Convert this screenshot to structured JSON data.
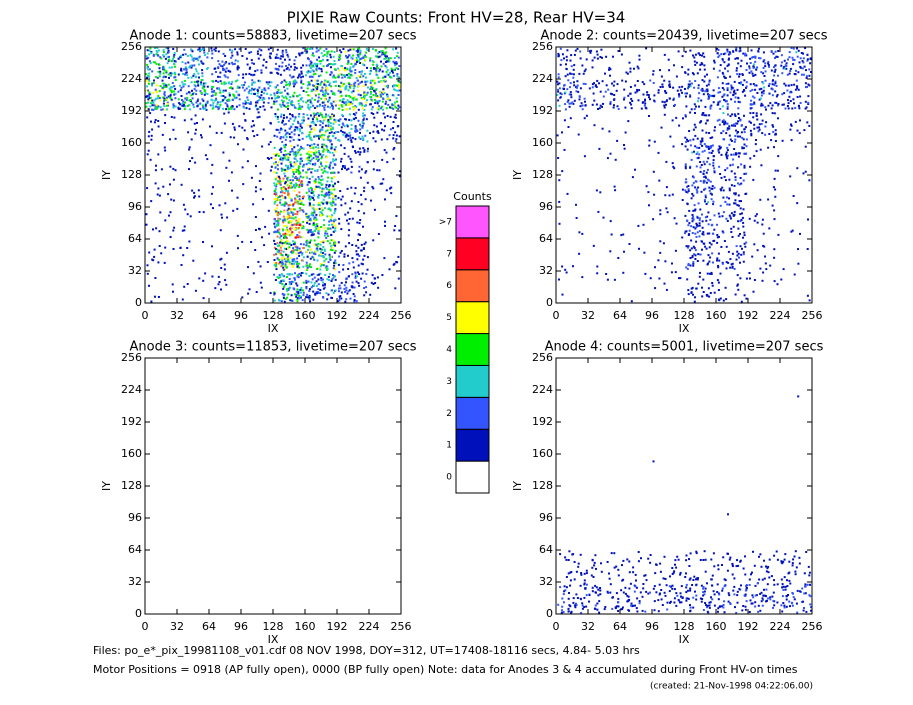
{
  "title": "PIXIE Raw Counts:  Front HV=28, Rear HV=34",
  "chart_data": [
    {
      "type": "heatmap",
      "title": "Anode 1: counts=58883, livetime=207 secs",
      "xlabel": "IX",
      "ylabel": "IY",
      "xlim": [
        0,
        256
      ],
      "ylim": [
        0,
        256
      ],
      "xticks": [
        0,
        32,
        64,
        96,
        128,
        160,
        192,
        224,
        256
      ],
      "yticks": [
        0,
        32,
        64,
        96,
        128,
        160,
        192,
        224,
        256
      ],
      "grid": [
        [
          2.5,
          2,
          1.5,
          1,
          1.5,
          2.5,
          3,
          2.5
        ],
        [
          3,
          2.5,
          2.5,
          2,
          2.5,
          3,
          3,
          3
        ],
        [
          0.5,
          0.3,
          0.3,
          0.5,
          2,
          3,
          2,
          1
        ],
        [
          0.3,
          0.2,
          0.2,
          0.3,
          3,
          3,
          1,
          0.3
        ],
        [
          0.3,
          0.2,
          0.2,
          0.2,
          4,
          3,
          0.5,
          0.3
        ],
        [
          0.3,
          0.2,
          0.2,
          0.2,
          4,
          3,
          0.5,
          0.2
        ],
        [
          0.3,
          0.2,
          0.2,
          0.2,
          3.5,
          3,
          1,
          0.2
        ],
        [
          0.2,
          0.2,
          0.2,
          0.2,
          2.5,
          2,
          1.5,
          0.3
        ]
      ]
    },
    {
      "type": "heatmap",
      "title": "Anode 2: counts=20439, livetime=207 secs",
      "xlabel": "IX",
      "ylabel": "IY",
      "xlim": [
        0,
        256
      ],
      "ylim": [
        0,
        256
      ],
      "xticks": [
        0,
        32,
        64,
        96,
        128,
        160,
        192,
        224,
        256
      ],
      "yticks": [
        0,
        32,
        64,
        96,
        128,
        160,
        192,
        224,
        256
      ],
      "grid": [
        [
          1,
          0.5,
          0.3,
          0.3,
          0.8,
          1.5,
          1.5,
          1.5
        ],
        [
          1.5,
          1,
          1,
          1,
          1.5,
          1.5,
          1.5,
          1.2
        ],
        [
          0.2,
          0.1,
          0.1,
          0.2,
          1,
          1.5,
          1,
          0.3
        ],
        [
          0.1,
          0.1,
          0.1,
          0.2,
          1.5,
          1.2,
          0.3,
          0.1
        ],
        [
          0.1,
          0.1,
          0.1,
          0.2,
          1.5,
          1,
          0.2,
          0.1
        ],
        [
          0.1,
          0.1,
          0.1,
          0.2,
          1.5,
          1,
          0.3,
          0.1
        ],
        [
          0.1,
          0.1,
          0.1,
          0.2,
          1.2,
          1,
          0.3,
          0.1
        ],
        [
          0.1,
          0.1,
          0.1,
          0.2,
          0.8,
          0.5,
          0.2,
          0.1
        ]
      ]
    },
    {
      "type": "heatmap",
      "title": "Anode 3: counts=11853, livetime=207 secs",
      "xlabel": "IX",
      "ylabel": "IY",
      "xlim": [
        0,
        256
      ],
      "ylim": [
        0,
        256
      ],
      "xticks": [
        0,
        32,
        64,
        96,
        128,
        160,
        192,
        224,
        256
      ],
      "yticks": [
        0,
        32,
        64,
        96,
        128,
        160,
        192,
        224,
        256
      ],
      "grid": [
        [
          0,
          0,
          0,
          0,
          0,
          0,
          0,
          0
        ],
        [
          0,
          0,
          0,
          0,
          0,
          0,
          0,
          0
        ],
        [
          0,
          0,
          0,
          0,
          0,
          0,
          0,
          0
        ],
        [
          0,
          0,
          0,
          0,
          0,
          0,
          0,
          0
        ],
        [
          0,
          0,
          0,
          0,
          0,
          0,
          0,
          0
        ],
        [
          0,
          0,
          0,
          0,
          0,
          0,
          0,
          0
        ],
        [
          0,
          0,
          0,
          0,
          0,
          0,
          0,
          0
        ],
        [
          0,
          0,
          0,
          0,
          0,
          0,
          0,
          0
        ]
      ]
    },
    {
      "type": "heatmap",
      "title": "Anode 4: counts=5001, livetime=207 secs",
      "xlabel": "IX",
      "ylabel": "IY",
      "xlim": [
        0,
        256
      ],
      "ylim": [
        0,
        256
      ],
      "xticks": [
        0,
        32,
        64,
        96,
        128,
        160,
        192,
        224,
        256
      ],
      "yticks": [
        0,
        32,
        64,
        96,
        128,
        160,
        192,
        224,
        256
      ],
      "grid": [
        [
          0,
          0,
          0,
          0,
          0,
          0,
          0,
          0
        ],
        [
          0,
          0,
          0,
          0,
          0,
          0,
          0,
          0.02
        ],
        [
          0,
          0,
          0,
          0,
          0,
          0,
          0,
          0
        ],
        [
          0,
          0,
          0,
          0.02,
          0,
          0,
          0,
          0
        ],
        [
          0,
          0,
          0,
          0,
          0,
          0.02,
          0,
          0
        ],
        [
          0,
          0,
          0,
          0,
          0,
          0,
          0,
          0
        ],
        [
          0.6,
          0.5,
          0.5,
          0.5,
          0.7,
          0.6,
          0.6,
          0.7
        ],
        [
          1.2,
          1,
          1,
          1,
          1.3,
          1.2,
          1.1,
          1.3
        ]
      ]
    }
  ],
  "colorbar": {
    "title": "Counts",
    "ticks": [
      0,
      1,
      2,
      3,
      4,
      5,
      6,
      7,
      {
        "value": 8,
        "label": ">7"
      }
    ],
    "colors": [
      "#ffffff",
      "#0011bb",
      "#3355ff",
      "#22cccc",
      "#00ee00",
      "#ffff00",
      "#ff6633",
      "#ff0022",
      "#ff55ff"
    ]
  },
  "footer": {
    "files": "Files: po_e*_pix_19981108_v01.cdf   08 NOV 1998, DOY=312, UT=17408-18116 secs,  4.84- 5.03 hrs",
    "motor": "Motor Positions = 0918 (AP fully open), 0000 (BP fully open)    Note: data for Anodes 3 & 4 accumulated during Front HV-on times",
    "created": "(created: 21-Nov-1998 04:22:06.00)"
  }
}
